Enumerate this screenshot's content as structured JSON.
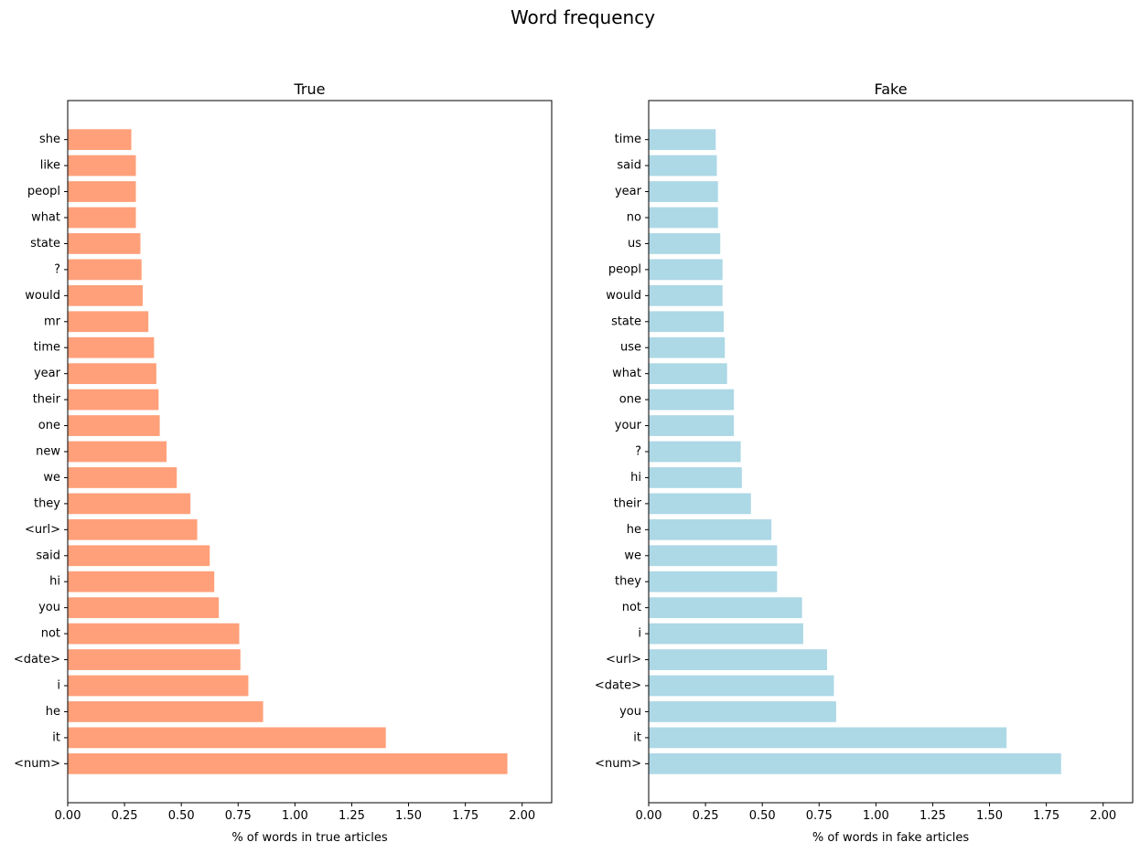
{
  "figure_title": "Word frequency",
  "chart_data": [
    {
      "type": "bar",
      "orientation": "horizontal",
      "title": "True",
      "xlabel": "% of words in true articles",
      "ylabel": "",
      "xlim": [
        0,
        2.13
      ],
      "xticks": [
        "0.00",
        "0.25",
        "0.50",
        "0.75",
        "1.00",
        "1.25",
        "1.50",
        "1.75",
        "2.00"
      ],
      "color": "#ffa07a",
      "categories": [
        "she",
        "like",
        "peopl",
        "what",
        "state",
        "?",
        "would",
        "mr",
        "time",
        "year",
        "their",
        "one",
        "new",
        "we",
        "they",
        "<url>",
        "said",
        "hi",
        "you",
        "not",
        "<date>",
        "i",
        "he",
        "it",
        "<num>"
      ],
      "values": [
        0.28,
        0.3,
        0.3,
        0.3,
        0.32,
        0.325,
        0.33,
        0.355,
        0.38,
        0.39,
        0.4,
        0.405,
        0.435,
        0.48,
        0.54,
        0.57,
        0.625,
        0.645,
        0.665,
        0.755,
        0.76,
        0.795,
        0.86,
        1.4,
        1.935
      ],
      "grid": false
    },
    {
      "type": "bar",
      "orientation": "horizontal",
      "title": "Fake",
      "xlabel": "% of words in fake articles",
      "ylabel": "",
      "xlim": [
        0,
        2.13
      ],
      "xticks": [
        "0.00",
        "0.25",
        "0.50",
        "0.75",
        "1.00",
        "1.25",
        "1.50",
        "1.75",
        "2.00"
      ],
      "color": "#add8e6",
      "categories": [
        "time",
        "said",
        "year",
        "no",
        "us",
        "peopl",
        "would",
        "state",
        "use",
        "what",
        "one",
        "your",
        "?",
        "hi",
        "their",
        "he",
        "we",
        "they",
        "not",
        "i",
        "<url>",
        "<date>",
        "you",
        "it",
        "<num>"
      ],
      "values": [
        0.295,
        0.3,
        0.305,
        0.305,
        0.315,
        0.325,
        0.325,
        0.33,
        0.335,
        0.345,
        0.375,
        0.375,
        0.405,
        0.41,
        0.45,
        0.54,
        0.565,
        0.565,
        0.675,
        0.68,
        0.785,
        0.815,
        0.825,
        1.575,
        1.815
      ],
      "grid": false
    }
  ]
}
